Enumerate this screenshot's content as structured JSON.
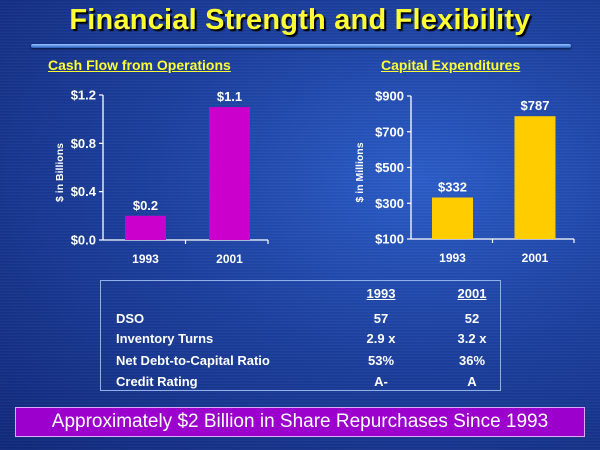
{
  "title": "Financial Strength and Flexibility",
  "chart_data": [
    {
      "type": "bar",
      "title": "Cash Flow from Operations",
      "xlabel": "",
      "ylabel": "$ in Billions",
      "categories": [
        "1993",
        "2001"
      ],
      "values": [
        0.2,
        1.1
      ],
      "data_labels": [
        "$0.2",
        "$1.1"
      ],
      "ylim": [
        0.0,
        1.2
      ],
      "yticks": [
        0.0,
        0.4,
        0.8,
        1.2
      ],
      "ytick_labels": [
        "$0.0",
        "$0.4",
        "$0.8",
        "$1.2"
      ],
      "bar_color": "#cc00cc",
      "grid": false,
      "legend": "none"
    },
    {
      "type": "bar",
      "title": "Capital Expenditures",
      "xlabel": "",
      "ylabel": "$ in Millions",
      "categories": [
        "1993",
        "2001"
      ],
      "values": [
        332,
        787
      ],
      "data_labels": [
        "$332",
        "$787"
      ],
      "ylim": [
        100,
        900
      ],
      "yticks": [
        100,
        300,
        500,
        700,
        900
      ],
      "ytick_labels": [
        "$100",
        "$300",
        "$500",
        "$700",
        "$900"
      ],
      "bar_color": "#ffcc00",
      "grid": false,
      "legend": "none"
    }
  ],
  "metrics_table": {
    "headers": [
      "",
      "1993",
      "2001"
    ],
    "rows": [
      {
        "label": "DSO",
        "y1993": "57",
        "y2001": "52"
      },
      {
        "label": "Inventory Turns",
        "y1993": "2.9 x",
        "y2001": "3.2 x"
      },
      {
        "label": "Net Debt-to-Capital Ratio",
        "y1993": "53%",
        "y2001": "36%"
      },
      {
        "label": "Credit Rating",
        "y1993": "A-",
        "y2001": "A"
      }
    ]
  },
  "banner": {
    "text": "Approximately $2 Billion in Share Repurchases Since 1993",
    "color": "#9b00cc"
  },
  "colors": {
    "title": "#ffff33",
    "background": "#1b3f9e"
  }
}
